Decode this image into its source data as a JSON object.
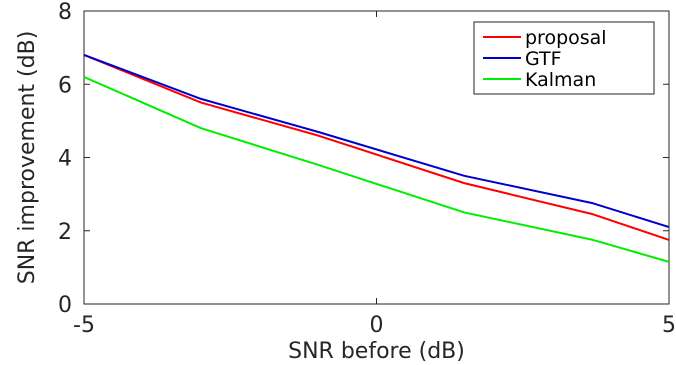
{
  "chart_data": {
    "type": "line",
    "title": "",
    "xlabel": "SNR before (dB)",
    "ylabel": "SNR improvement (dB)",
    "xlim": [
      -5,
      5
    ],
    "ylim": [
      0,
      8
    ],
    "xticks": [
      -5,
      0,
      5
    ],
    "yticks": [
      0,
      2,
      4,
      6,
      8
    ],
    "xtick_labels": [
      "-5",
      "0",
      "5"
    ],
    "ytick_labels": [
      "0",
      "2",
      "4",
      "6",
      "8"
    ],
    "grid": false,
    "legend_position": "top-right",
    "x": [
      -5,
      -3,
      -1,
      1.5,
      3.7,
      5
    ],
    "series": [
      {
        "name": "proposal",
        "color": "#ff0000",
        "values": [
          6.8,
          5.5,
          4.6,
          3.3,
          2.45,
          1.75
        ]
      },
      {
        "name": "GTF",
        "color": "#0000cc",
        "values": [
          6.8,
          5.6,
          4.7,
          3.5,
          2.75,
          2.1
        ]
      },
      {
        "name": "Kalman",
        "color": "#00ee00",
        "values": [
          6.2,
          4.8,
          3.8,
          2.5,
          1.75,
          1.15
        ]
      }
    ]
  }
}
